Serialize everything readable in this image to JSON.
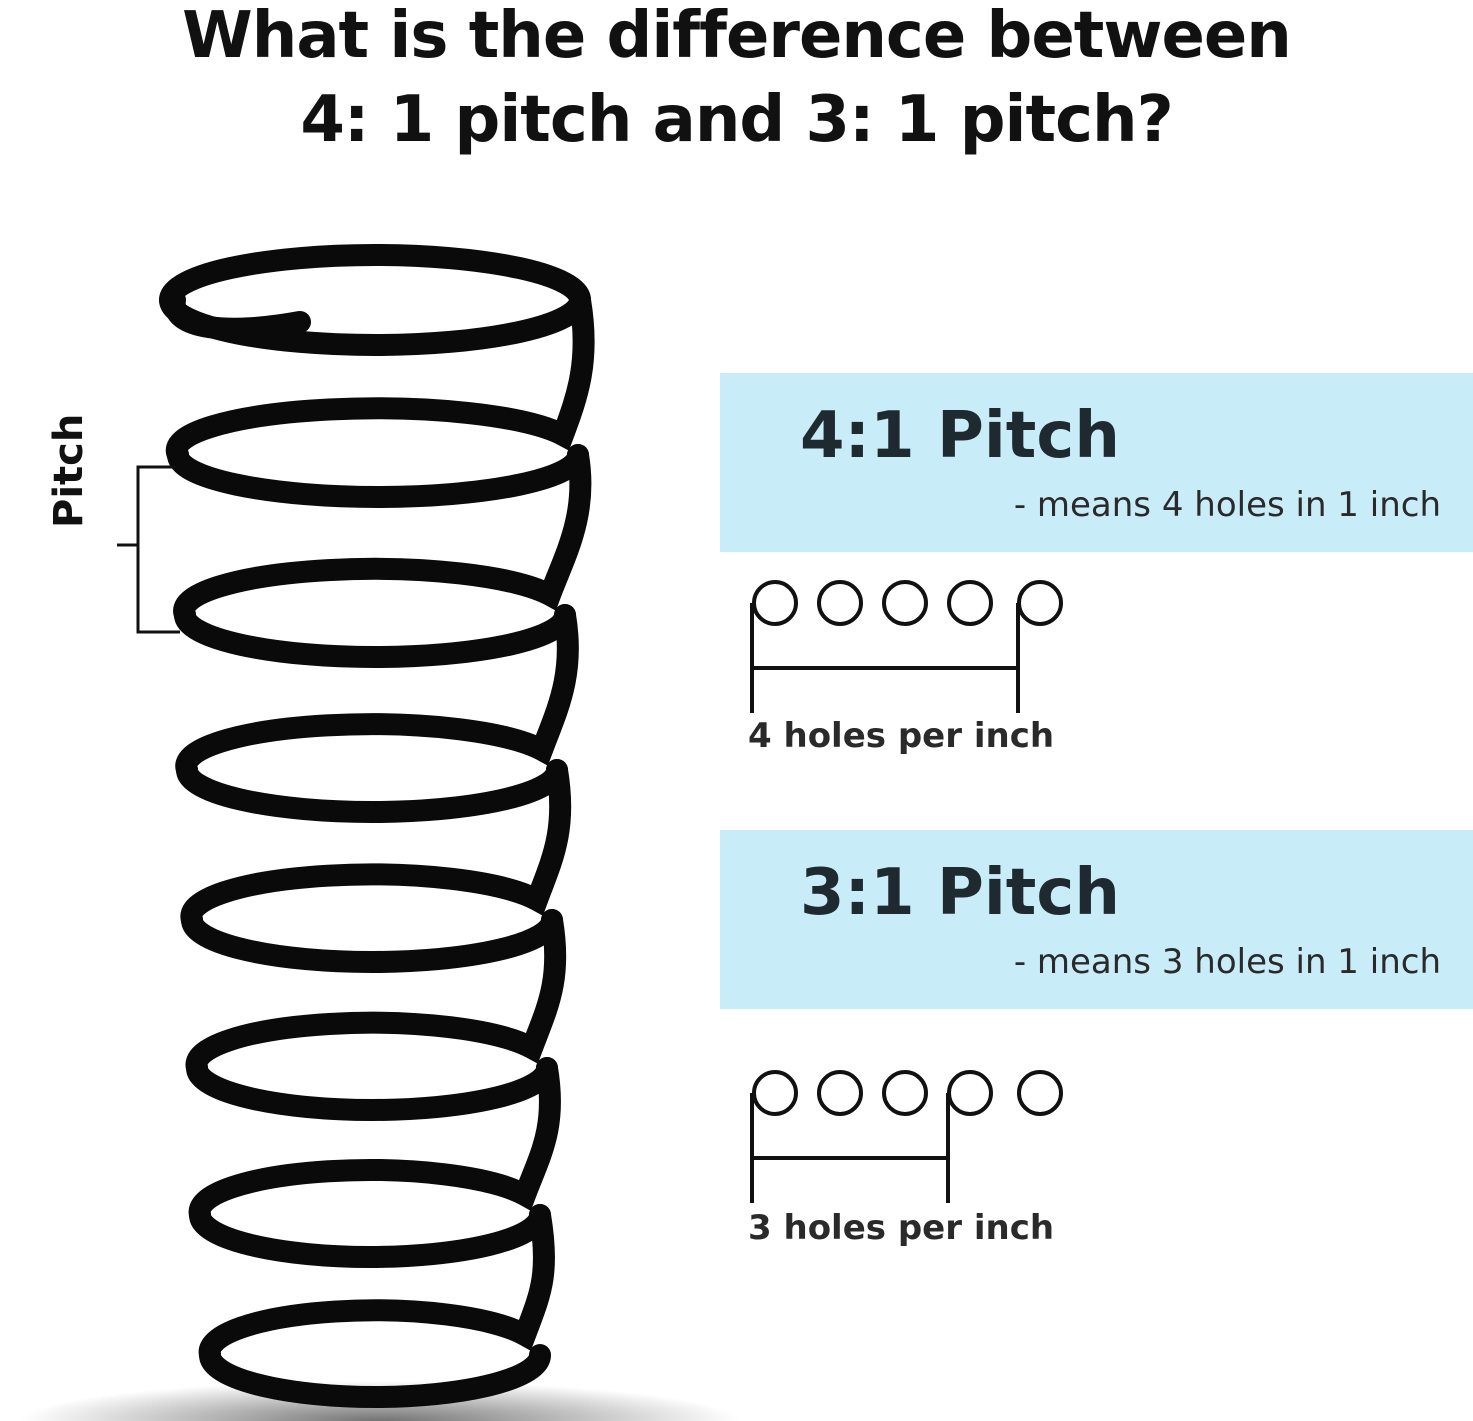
{
  "title": {
    "line1": "What is the difference between",
    "line2": "4: 1 pitch and 3: 1 pitch?"
  },
  "spring": {
    "label": "Pitch",
    "color": "#0a0a0a"
  },
  "pitch_4_1": {
    "title": "4:1 Pitch",
    "subtitle": "- means 4 holes in 1 inch",
    "caption": "4 holes per inch",
    "holes_shown": 5,
    "holes_per_inch": 4
  },
  "pitch_3_1": {
    "title": "3:1 Pitch",
    "subtitle": "- means 3 holes in 1 inch",
    "caption": "3 holes per inch",
    "holes_shown": 5,
    "holes_per_inch": 3
  },
  "colors": {
    "box_background": "#c9ecf9",
    "text": "#111111"
  }
}
